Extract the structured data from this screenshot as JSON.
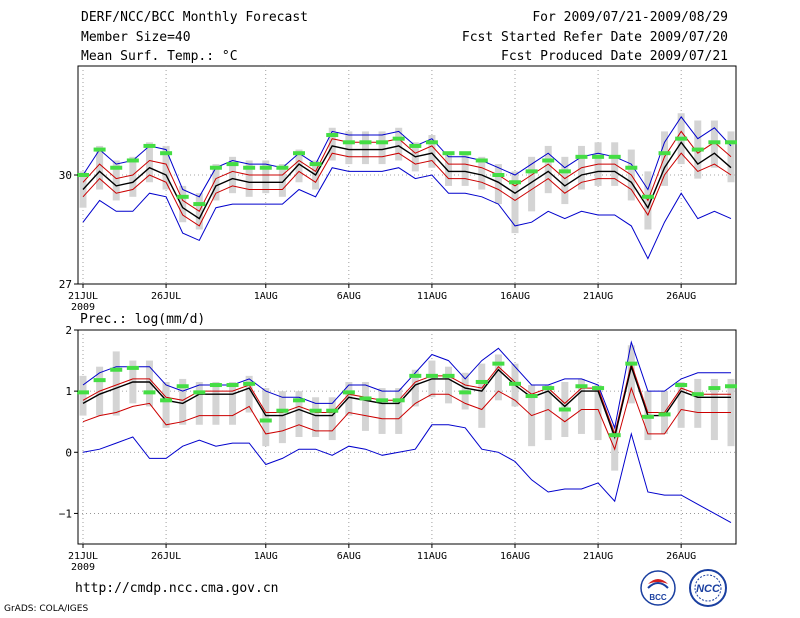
{
  "header": {
    "title": "DERF/NCC/BCC Monthly Forecast",
    "member_size": "Member Size=40",
    "variable": "Mean Surf. Temp.: °C",
    "period": "For 2009/07/21-2009/08/29",
    "start_date": "Fcst Started Refer Date 2009/07/20",
    "produced_date": "Fcst Produced Date 2009/07/21"
  },
  "footer": {
    "url": "http://cmdp.ncc.cma.gov.cn",
    "credit": "GrADS: COLA/IGES",
    "logo_bcc": "BCC",
    "logo_ncc": "NCC"
  },
  "colors": {
    "mean": "#000000",
    "spread": "#cc0000",
    "extreme": "#0000cc",
    "box": "#d4d4d4",
    "marker": "#44dd44"
  },
  "chart_data": [
    {
      "type": "line",
      "title": "Mean Surf. Temp.: °C",
      "x": [
        1,
        2,
        3,
        4,
        5,
        6,
        7,
        8,
        9,
        10,
        11,
        12,
        13,
        14,
        15,
        16,
        17,
        18,
        19,
        20,
        21,
        22,
        23,
        24,
        25,
        26,
        27,
        28,
        29,
        30,
        31,
        32,
        33,
        34,
        35,
        36,
        37,
        38,
        39,
        40
      ],
      "xtick_positions": [
        1,
        6,
        12,
        17,
        22,
        27,
        32,
        37
      ],
      "xtick_labels": [
        "21JUL",
        "26JUL",
        "1AUG",
        "6AUG",
        "11AUG",
        "16AUG",
        "21AUG",
        "26AUG"
      ],
      "xtick_year": "2009",
      "ylim": [
        27,
        33
      ],
      "ytick_positions": [
        27,
        30
      ],
      "ytick_labels": [
        "27",
        "30"
      ],
      "grid": true,
      "series": [
        {
          "name": "max",
          "values": [
            30.0,
            30.7,
            30.3,
            30.4,
            30.8,
            30.7,
            29.6,
            29.4,
            30.2,
            30.4,
            30.3,
            30.3,
            30.2,
            30.6,
            30.3,
            31.2,
            31.1,
            31.1,
            31.1,
            31.2,
            30.8,
            31.0,
            30.5,
            30.5,
            30.4,
            30.2,
            30.0,
            30.3,
            30.6,
            30.2,
            30.5,
            30.6,
            30.5,
            30.3,
            29.6,
            30.9,
            31.6,
            31.0,
            31.3,
            30.8
          ]
        },
        {
          "name": "upper",
          "values": [
            29.8,
            30.3,
            29.9,
            30.0,
            30.4,
            30.3,
            29.3,
            29.0,
            29.9,
            30.1,
            30.0,
            30.0,
            30.0,
            30.4,
            30.1,
            31.0,
            30.9,
            30.9,
            30.9,
            31.0,
            30.6,
            30.8,
            30.3,
            30.3,
            30.2,
            30.0,
            29.7,
            30.0,
            30.3,
            29.9,
            30.2,
            30.3,
            30.3,
            30.0,
            29.3,
            30.5,
            31.2,
            30.6,
            30.9,
            30.5
          ]
        },
        {
          "name": "mean",
          "values": [
            29.6,
            30.1,
            29.7,
            29.8,
            30.2,
            30.0,
            29.1,
            28.8,
            29.7,
            29.9,
            29.8,
            29.8,
            29.8,
            30.3,
            30.0,
            30.8,
            30.7,
            30.7,
            30.7,
            30.8,
            30.5,
            30.6,
            30.1,
            30.1,
            30.0,
            29.8,
            29.5,
            29.8,
            30.1,
            29.7,
            30.0,
            30.1,
            30.1,
            29.8,
            29.1,
            30.2,
            30.9,
            30.3,
            30.6,
            30.2
          ]
        },
        {
          "name": "lower",
          "values": [
            29.4,
            29.9,
            29.5,
            29.6,
            30.0,
            29.8,
            28.9,
            28.6,
            29.5,
            29.7,
            29.6,
            29.6,
            29.6,
            30.1,
            29.8,
            30.6,
            30.5,
            30.5,
            30.5,
            30.6,
            30.3,
            30.4,
            29.9,
            29.9,
            29.8,
            29.6,
            29.3,
            29.6,
            29.9,
            29.5,
            29.8,
            29.9,
            29.9,
            29.6,
            28.9,
            30.0,
            30.6,
            30.1,
            30.3,
            30.0
          ]
        },
        {
          "name": "min",
          "values": [
            28.7,
            29.3,
            29.0,
            29.0,
            29.5,
            29.4,
            28.4,
            28.2,
            29.1,
            29.2,
            29.2,
            29.2,
            29.2,
            29.6,
            29.4,
            30.2,
            30.1,
            30.1,
            30.1,
            30.2,
            29.9,
            30.0,
            29.5,
            29.5,
            29.4,
            29.2,
            28.6,
            28.7,
            29.0,
            28.8,
            29.0,
            28.9,
            28.9,
            28.6,
            27.7,
            28.7,
            29.5,
            28.8,
            29.0,
            28.8
          ]
        },
        {
          "name": "box_high",
          "values": [
            30.1,
            30.8,
            30.4,
            30.5,
            30.9,
            30.8,
            29.7,
            29.5,
            30.3,
            30.5,
            30.4,
            30.4,
            30.3,
            30.7,
            30.4,
            31.3,
            31.2,
            31.2,
            31.2,
            31.3,
            30.9,
            31.1,
            30.6,
            30.6,
            30.5,
            30.3,
            30.1,
            30.5,
            30.8,
            30.5,
            30.8,
            30.9,
            30.9,
            30.7,
            30.1,
            31.2,
            31.7,
            31.5,
            31.5,
            31.2
          ]
        },
        {
          "name": "box_low",
          "values": [
            29.1,
            29.6,
            29.3,
            29.4,
            29.8,
            29.6,
            28.7,
            28.5,
            29.3,
            29.5,
            29.4,
            29.5,
            29.4,
            29.8,
            29.6,
            30.4,
            30.3,
            30.3,
            30.3,
            30.4,
            30.1,
            30.2,
            29.7,
            29.7,
            29.6,
            29.2,
            28.4,
            29.0,
            29.5,
            29.2,
            29.6,
            29.7,
            29.7,
            29.3,
            28.5,
            29.7,
            30.3,
            29.9,
            30.2,
            29.8
          ]
        },
        {
          "name": "marker",
          "values": [
            30.0,
            30.7,
            30.2,
            30.4,
            30.8,
            30.6,
            29.4,
            29.2,
            30.2,
            30.3,
            30.2,
            30.2,
            30.2,
            30.6,
            30.3,
            31.1,
            30.9,
            30.9,
            30.9,
            31.0,
            30.8,
            30.9,
            30.6,
            30.6,
            30.4,
            30.0,
            29.8,
            30.1,
            30.4,
            30.1,
            30.5,
            30.5,
            30.5,
            30.2,
            29.4,
            30.6,
            31.0,
            30.7,
            30.9,
            30.9
          ]
        }
      ]
    },
    {
      "type": "line",
      "title": "Prec.: log(mm/d)",
      "x": [
        1,
        2,
        3,
        4,
        5,
        6,
        7,
        8,
        9,
        10,
        11,
        12,
        13,
        14,
        15,
        16,
        17,
        18,
        19,
        20,
        21,
        22,
        23,
        24,
        25,
        26,
        27,
        28,
        29,
        30,
        31,
        32,
        33,
        34,
        35,
        36,
        37,
        38,
        39,
        40
      ],
      "xtick_positions": [
        1,
        6,
        12,
        17,
        22,
        27,
        32,
        37
      ],
      "xtick_labels": [
        "21JUL",
        "26JUL",
        "1AUG",
        "6AUG",
        "11AUG",
        "16AUG",
        "21AUG",
        "26AUG"
      ],
      "xtick_year": "2009",
      "ylim": [
        -1.5,
        2
      ],
      "ytick_positions": [
        -1,
        0,
        1,
        2
      ],
      "ytick_labels": [
        "−1",
        "0",
        "1",
        "2"
      ],
      "grid": true,
      "series": [
        {
          "name": "max",
          "values": [
            1.1,
            1.3,
            1.4,
            1.4,
            1.4,
            1.1,
            1.0,
            1.1,
            1.1,
            1.1,
            1.2,
            1.0,
            0.9,
            0.9,
            0.8,
            0.8,
            1.1,
            1.1,
            1.0,
            1.0,
            1.3,
            1.6,
            1.5,
            1.2,
            1.5,
            1.7,
            1.4,
            1.1,
            1.1,
            1.2,
            1.2,
            1.1,
            0.4,
            1.8,
            1.0,
            1.0,
            1.2,
            1.3,
            1.3,
            1.3
          ]
        },
        {
          "name": "upper",
          "values": [
            0.85,
            1.0,
            1.1,
            1.2,
            1.2,
            0.9,
            0.85,
            1.0,
            1.0,
            1.0,
            1.1,
            0.65,
            0.65,
            0.75,
            0.65,
            0.65,
            0.95,
            0.9,
            0.85,
            0.85,
            1.15,
            1.25,
            1.25,
            1.1,
            1.05,
            1.4,
            1.15,
            0.95,
            1.05,
            0.8,
            1.05,
            1.05,
            0.3,
            1.45,
            0.65,
            0.65,
            1.05,
            0.95,
            0.95,
            0.95
          ]
        },
        {
          "name": "mean",
          "values": [
            0.8,
            0.95,
            1.05,
            1.15,
            1.15,
            0.85,
            0.8,
            0.95,
            0.95,
            0.95,
            1.05,
            0.6,
            0.6,
            0.7,
            0.6,
            0.6,
            0.9,
            0.85,
            0.8,
            0.8,
            1.1,
            1.2,
            1.2,
            1.05,
            1.0,
            1.35,
            1.1,
            0.9,
            1.0,
            0.75,
            1.0,
            1.0,
            0.25,
            1.4,
            0.6,
            0.6,
            1.0,
            0.9,
            0.9,
            0.9
          ]
        },
        {
          "name": "lower",
          "values": [
            0.5,
            0.6,
            0.65,
            0.75,
            0.8,
            0.45,
            0.5,
            0.6,
            0.6,
            0.6,
            0.75,
            0.3,
            0.35,
            0.45,
            0.35,
            0.35,
            0.65,
            0.6,
            0.55,
            0.55,
            0.8,
            0.95,
            0.95,
            0.8,
            0.7,
            1.0,
            0.85,
            0.6,
            0.7,
            0.5,
            0.7,
            0.7,
            0.05,
            1.05,
            0.3,
            0.3,
            0.7,
            0.65,
            0.65,
            0.65
          ]
        },
        {
          "name": "min",
          "values": [
            0.0,
            0.05,
            0.15,
            0.25,
            -0.1,
            -0.1,
            0.1,
            0.2,
            0.1,
            0.15,
            0.15,
            -0.2,
            -0.1,
            0.05,
            0.05,
            -0.05,
            0.1,
            0.05,
            -0.05,
            0.0,
            0.05,
            0.45,
            0.45,
            0.4,
            0.05,
            0.0,
            -0.15,
            -0.45,
            -0.65,
            -0.6,
            -0.6,
            -0.5,
            -0.8,
            0.3,
            -0.65,
            -0.7,
            -0.7,
            -0.85,
            -1.0,
            -1.15
          ]
        },
        {
          "name": "box_high",
          "values": [
            1.25,
            1.4,
            1.65,
            1.5,
            1.5,
            1.15,
            1.2,
            1.15,
            1.15,
            1.15,
            1.25,
            1.05,
            1.0,
            1.0,
            0.9,
            0.9,
            1.15,
            1.15,
            1.05,
            1.05,
            1.35,
            1.5,
            1.4,
            1.3,
            1.45,
            1.6,
            1.45,
            1.1,
            1.1,
            1.15,
            1.2,
            1.1,
            0.45,
            1.75,
            1.0,
            1.0,
            1.15,
            1.2,
            1.2,
            1.2
          ]
        },
        {
          "name": "box_low",
          "values": [
            0.6,
            0.6,
            0.6,
            0.8,
            0.75,
            0.4,
            0.45,
            0.45,
            0.45,
            0.45,
            0.65,
            0.1,
            0.15,
            0.25,
            0.25,
            0.2,
            0.6,
            0.35,
            0.3,
            0.3,
            0.75,
            0.9,
            0.8,
            0.7,
            0.4,
            0.85,
            0.75,
            0.1,
            0.2,
            0.25,
            0.3,
            0.2,
            -0.3,
            0.8,
            0.2,
            0.3,
            0.4,
            0.4,
            0.2,
            0.1
          ]
        },
        {
          "name": "marker",
          "values": [
            0.98,
            1.18,
            1.35,
            1.38,
            0.98,
            0.85,
            1.08,
            0.98,
            1.1,
            1.1,
            1.12,
            0.52,
            0.68,
            0.85,
            0.68,
            0.68,
            0.98,
            0.88,
            0.85,
            0.85,
            1.25,
            1.25,
            1.25,
            0.98,
            1.15,
            1.45,
            1.12,
            0.92,
            1.05,
            0.7,
            1.08,
            1.05,
            0.28,
            1.45,
            0.58,
            0.62,
            1.1,
            0.95,
            1.05,
            1.08
          ]
        }
      ]
    }
  ]
}
